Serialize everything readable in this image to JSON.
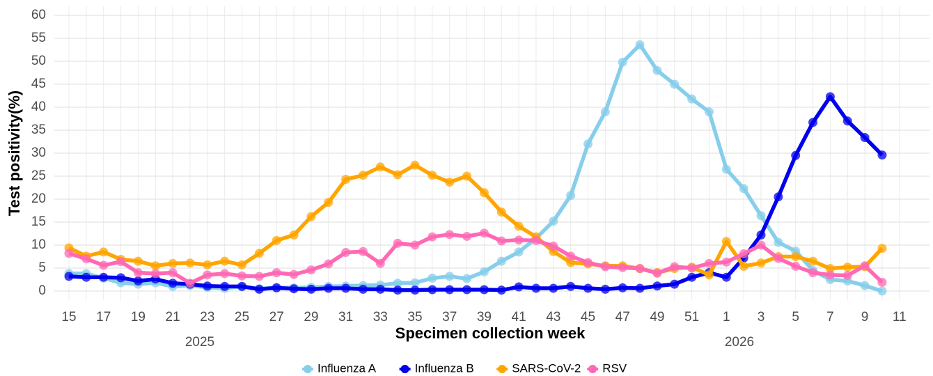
{
  "chart_data": {
    "type": "line",
    "x_label": "Specimen collection week",
    "y_label": "Test positivity(%)",
    "group_labels": [
      "2025",
      "2026"
    ],
    "categories": [
      "15",
      null,
      "17",
      null,
      "19",
      null,
      "21",
      null,
      "23",
      null,
      "25",
      null,
      "27",
      null,
      "29",
      null,
      "31",
      null,
      "33",
      null,
      "35",
      null,
      "37",
      null,
      "39",
      null,
      "41",
      null,
      "43",
      null,
      "45",
      null,
      "47",
      null,
      "49",
      null,
      "51",
      null,
      "1",
      null,
      "3",
      null,
      "5",
      null,
      "7",
      null,
      "9",
      null,
      "11"
    ],
    "series": [
      {
        "name": "Influenza A",
        "color": "#87ceeb",
        "values": [
          3.8,
          3.8,
          2.8,
          1.8,
          1.5,
          1.8,
          1.0,
          1.2,
          0.8,
          0.6,
          1.0,
          0.5,
          0.8,
          0.7,
          0.8,
          1.0,
          1.1,
          1.2,
          1.3,
          1.7,
          1.8,
          2.8,
          3.2,
          2.7,
          4.2,
          6.5,
          8.5,
          11.5,
          15.2,
          20.8,
          32,
          39,
          49.8,
          53.6,
          48,
          45,
          41.8,
          39,
          26.5,
          22.3,
          16.4,
          10.6,
          8.7,
          4.5,
          2.5,
          2.2,
          1.2,
          0.0,
          null
        ]
      },
      {
        "name": "Influenza B",
        "color": "#0000ee",
        "values": [
          3.2,
          3.0,
          3.0,
          2.9,
          2.2,
          2.6,
          1.7,
          1.5,
          1.1,
          1.0,
          1.0,
          0.4,
          0.7,
          0.5,
          0.4,
          0.6,
          0.6,
          0.4,
          0.4,
          0.2,
          0.2,
          0.3,
          0.3,
          0.3,
          0.3,
          0.2,
          0.9,
          0.6,
          0.6,
          1.0,
          0.6,
          0.4,
          0.7,
          0.6,
          1.1,
          1.5,
          3.0,
          4.0,
          3.0,
          7.2,
          12.2,
          20.5,
          29.5,
          36.7,
          42.3,
          37,
          33.4,
          29.6,
          null
        ]
      },
      {
        "name": "SARS-CoV-2",
        "color": "#ffa500",
        "values": [
          9.4,
          7.6,
          8.5,
          6.9,
          6.5,
          5.5,
          6.0,
          6.1,
          5.7,
          6.5,
          5.7,
          8.2,
          11,
          12.2,
          16.2,
          19.3,
          24.3,
          25.2,
          27,
          25.3,
          27.4,
          25.2,
          23.7,
          25,
          21.4,
          17.2,
          14.1,
          11.8,
          8.6,
          6.2,
          5.9,
          5.5,
          5.5,
          4.9,
          4.0,
          4.9,
          5.2,
          3.5,
          10.8,
          5.4,
          6.1,
          7.5,
          7.5,
          6.5,
          4.9,
          5.2,
          5.3,
          9.3,
          null
        ]
      },
      {
        "name": "RSV",
        "color": "#ff69b4",
        "values": [
          8.2,
          7.0,
          5.6,
          6.4,
          4.0,
          3.8,
          4.0,
          1.7,
          3.5,
          3.8,
          3.3,
          3.2,
          4.0,
          3.6,
          4.6,
          5.9,
          8.4,
          8.6,
          6.0,
          10.4,
          10.0,
          11.8,
          12.3,
          11.9,
          12.6,
          10.9,
          11.1,
          11.0,
          9.8,
          7.6,
          6.2,
          5.3,
          5.1,
          4.9,
          3.9,
          5.3,
          5.0,
          6.0,
          6.3,
          8.1,
          10.0,
          7.1,
          5.4,
          4.0,
          3.5,
          3.4,
          5.5,
          1.9,
          null
        ]
      }
    ],
    "ylim": [
      -2,
      62
    ],
    "yticks": [
      0,
      5,
      10,
      15,
      20,
      25,
      30,
      35,
      40,
      45,
      50,
      55,
      60
    ],
    "grid": true,
    "legend": "bottom"
  }
}
